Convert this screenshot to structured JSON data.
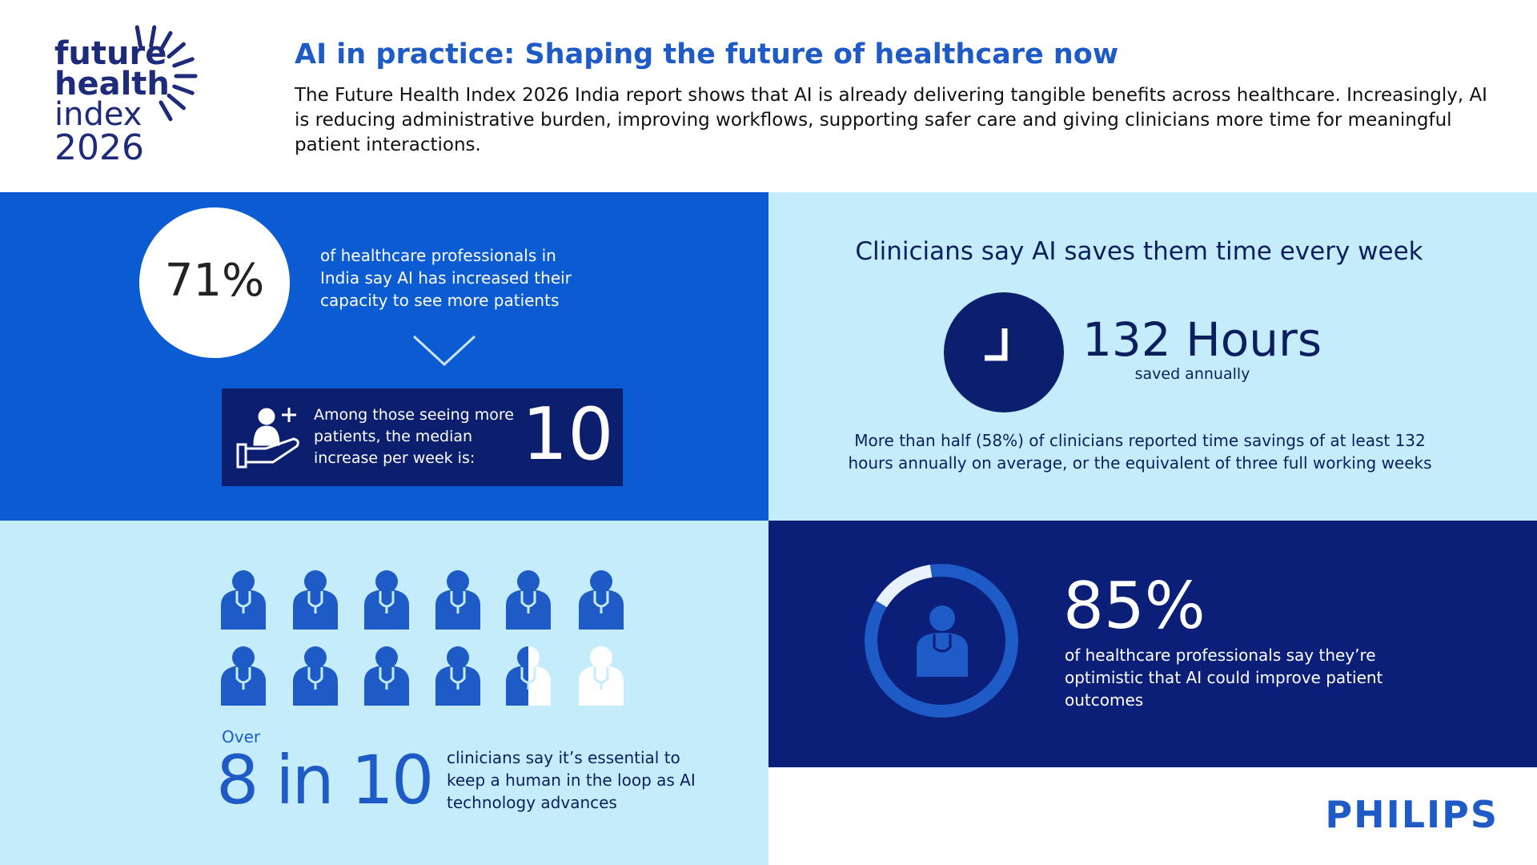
{
  "logo": {
    "lines": [
      "future",
      "health",
      "index",
      "2026"
    ]
  },
  "header": {
    "title": "AI in practice: Shaping the future of healthcare now",
    "body": "The Future Health Index 2026 India report shows that AI is already delivering tangible benefits across healthcare. Increasingly, AI is reducing administrative burden, improving workflows, supporting safer care and giving clinicians more time for meaningful patient interactions."
  },
  "capacity": {
    "stat": "71%",
    "text": "of healthcare professionals in India say AI has increased their capacity to see more patients",
    "median_text": "Among those seeing more patients, the median increase per week is:",
    "median_value": "10"
  },
  "time_saved": {
    "heading": "Clinicians say AI saves them time every week",
    "stat": "132 Hours",
    "stat_caption": "saved annually",
    "text": "More than half (58%) of clinicians reported time savings of at least 132 hours annually on average, or the equivalent of three full working weeks"
  },
  "human_loop": {
    "prefix": "Over",
    "stat": "8 in 10",
    "text": "clinicians say it’s essential to keep a human in the loop as AI technology advances"
  },
  "optimism": {
    "stat": "85%",
    "text": "of healthcare professionals say they’re optimistic that AI could improve patient outcomes"
  },
  "brand": "PHILIPS"
}
